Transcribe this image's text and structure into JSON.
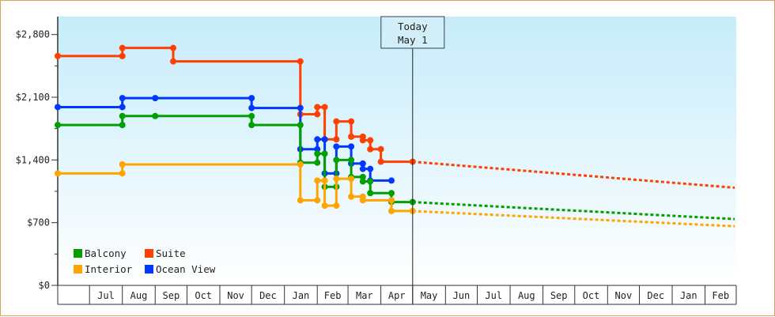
{
  "chart_data": {
    "type": "line",
    "title": "",
    "xlabel": "",
    "ylabel": "",
    "ylim": [
      0,
      3000
    ],
    "y_ticks": [
      {
        "value": 0,
        "label": "$0"
      },
      {
        "value": 700,
        "label": "$700"
      },
      {
        "value": 1400,
        "label": "$1,400"
      },
      {
        "value": 2100,
        "label": "$2,100"
      },
      {
        "value": 2800,
        "label": "$2,800"
      }
    ],
    "x_domain": [
      "2023-06-01",
      "2024-03-01"
    ],
    "x_ticks": [
      {
        "date": "2023-07-01",
        "label": "Jul"
      },
      {
        "date": "2023-08-01",
        "label": "Aug"
      },
      {
        "date": "2023-09-01",
        "label": "Sep"
      },
      {
        "date": "2023-10-01",
        "label": "Oct"
      },
      {
        "date": "2023-11-01",
        "label": "Nov"
      },
      {
        "date": "2023-12-01",
        "label": "Dec"
      },
      {
        "date": "2024-01-01",
        "label": "Jan"
      },
      {
        "date": "2024-02-01",
        "label": "Feb"
      },
      {
        "date": "2024-03-01",
        "label": "Mar"
      },
      {
        "date": "2024-04-01",
        "label": "Apr"
      },
      {
        "date": "2024-05-01",
        "label": "May"
      },
      {
        "date": "2024-06-01",
        "label": "Jun"
      },
      {
        "date": "2024-07-01",
        "label": "Jul"
      },
      {
        "date": "2024-08-01",
        "label": "Aug"
      },
      {
        "date": "2024-09-01",
        "label": "Sep"
      },
      {
        "date": "2024-10-01",
        "label": "Oct"
      },
      {
        "date": "2024-11-01",
        "label": "Nov"
      },
      {
        "date": "2024-12-01",
        "label": "Dec"
      },
      {
        "date": "2025-01-01",
        "label": "Jan"
      },
      {
        "date": "2025-02-01",
        "label": "Feb"
      }
    ],
    "today": {
      "date": "2024-05-01",
      "label_line1": "Today",
      "label_line2": "May 1"
    },
    "legend": {
      "placement": "bottom-left"
    },
    "series": [
      {
        "name": "Suite",
        "color": "#ff4000",
        "points": [
          {
            "date": "2023-06-01",
            "value": 2560
          },
          {
            "date": "2023-08-01",
            "value": 2560
          },
          {
            "date": "2023-08-01",
            "value": 2650
          },
          {
            "date": "2023-09-18",
            "value": 2650
          },
          {
            "date": "2023-09-18",
            "value": 2500
          },
          {
            "date": "2024-01-16",
            "value": 2500
          },
          {
            "date": "2024-01-16",
            "value": 1910
          },
          {
            "date": "2024-02-01",
            "value": 1910
          },
          {
            "date": "2024-02-01",
            "value": 1990
          },
          {
            "date": "2024-02-08",
            "value": 1990
          },
          {
            "date": "2024-02-08",
            "value": 1630
          },
          {
            "date": "2024-02-19",
            "value": 1630
          },
          {
            "date": "2024-02-19",
            "value": 1830
          },
          {
            "date": "2024-03-04",
            "value": 1830
          },
          {
            "date": "2024-03-04",
            "value": 1660
          },
          {
            "date": "2024-03-15",
            "value": 1660
          },
          {
            "date": "2024-03-15",
            "value": 1620
          },
          {
            "date": "2024-03-22",
            "value": 1620
          },
          {
            "date": "2024-03-22",
            "value": 1520
          },
          {
            "date": "2024-04-01",
            "value": 1520
          },
          {
            "date": "2024-04-01",
            "value": 1380
          },
          {
            "date": "2024-05-01",
            "value": 1380
          }
        ],
        "forecast": [
          {
            "date": "2024-05-01",
            "value": 1380
          },
          {
            "date": "2025-03-01",
            "value": 1090
          }
        ]
      },
      {
        "name": "Ocean View",
        "color": "#0038ff",
        "points": [
          {
            "date": "2023-06-01",
            "value": 1990
          },
          {
            "date": "2023-08-01",
            "value": 1990
          },
          {
            "date": "2023-08-01",
            "value": 2090
          },
          {
            "date": "2023-09-01",
            "value": 2090
          },
          {
            "date": "2023-12-01",
            "value": 2090
          },
          {
            "date": "2023-12-01",
            "value": 1980
          },
          {
            "date": "2024-01-16",
            "value": 1980
          },
          {
            "date": "2024-01-16",
            "value": 1520
          },
          {
            "date": "2024-02-01",
            "value": 1520
          },
          {
            "date": "2024-02-01",
            "value": 1630
          },
          {
            "date": "2024-02-08",
            "value": 1630
          },
          {
            "date": "2024-02-08",
            "value": 1250
          },
          {
            "date": "2024-02-19",
            "value": 1250
          },
          {
            "date": "2024-02-19",
            "value": 1550
          },
          {
            "date": "2024-03-04",
            "value": 1550
          },
          {
            "date": "2024-03-04",
            "value": 1360
          },
          {
            "date": "2024-03-15",
            "value": 1360
          },
          {
            "date": "2024-03-15",
            "value": 1300
          },
          {
            "date": "2024-03-22",
            "value": 1300
          },
          {
            "date": "2024-03-22",
            "value": 1170
          },
          {
            "date": "2024-04-11",
            "value": 1170
          }
        ],
        "forecast": []
      },
      {
        "name": "Balcony",
        "color": "#00a000",
        "points": [
          {
            "date": "2023-06-01",
            "value": 1790
          },
          {
            "date": "2023-08-01",
            "value": 1790
          },
          {
            "date": "2023-08-01",
            "value": 1890
          },
          {
            "date": "2023-09-01",
            "value": 1890
          },
          {
            "date": "2023-12-01",
            "value": 1890
          },
          {
            "date": "2023-12-01",
            "value": 1790
          },
          {
            "date": "2024-01-16",
            "value": 1790
          },
          {
            "date": "2024-01-16",
            "value": 1370
          },
          {
            "date": "2024-02-01",
            "value": 1370
          },
          {
            "date": "2024-02-01",
            "value": 1470
          },
          {
            "date": "2024-02-08",
            "value": 1470
          },
          {
            "date": "2024-02-08",
            "value": 1100
          },
          {
            "date": "2024-02-19",
            "value": 1100
          },
          {
            "date": "2024-02-19",
            "value": 1400
          },
          {
            "date": "2024-03-04",
            "value": 1400
          },
          {
            "date": "2024-03-04",
            "value": 1210
          },
          {
            "date": "2024-03-15",
            "value": 1210
          },
          {
            "date": "2024-03-15",
            "value": 1160
          },
          {
            "date": "2024-03-22",
            "value": 1160
          },
          {
            "date": "2024-03-22",
            "value": 1030
          },
          {
            "date": "2024-04-11",
            "value": 1030
          },
          {
            "date": "2024-04-11",
            "value": 930
          },
          {
            "date": "2024-05-01",
            "value": 930
          }
        ],
        "forecast": [
          {
            "date": "2024-05-01",
            "value": 930
          },
          {
            "date": "2025-03-01",
            "value": 740
          }
        ]
      },
      {
        "name": "Interior",
        "color": "#ffa500",
        "points": [
          {
            "date": "2023-06-01",
            "value": 1250
          },
          {
            "date": "2023-08-01",
            "value": 1250
          },
          {
            "date": "2023-08-01",
            "value": 1350
          },
          {
            "date": "2024-01-16",
            "value": 1350
          },
          {
            "date": "2024-01-16",
            "value": 950
          },
          {
            "date": "2024-02-01",
            "value": 950
          },
          {
            "date": "2024-02-01",
            "value": 1170
          },
          {
            "date": "2024-02-08",
            "value": 1170
          },
          {
            "date": "2024-02-08",
            "value": 890
          },
          {
            "date": "2024-02-19",
            "value": 890
          },
          {
            "date": "2024-02-19",
            "value": 1190
          },
          {
            "date": "2024-03-04",
            "value": 1190
          },
          {
            "date": "2024-03-04",
            "value": 990
          },
          {
            "date": "2024-03-15",
            "value": 990
          },
          {
            "date": "2024-03-15",
            "value": 950
          },
          {
            "date": "2024-04-11",
            "value": 950
          },
          {
            "date": "2024-04-11",
            "value": 830
          },
          {
            "date": "2024-05-01",
            "value": 830
          }
        ],
        "forecast": [
          {
            "date": "2024-05-01",
            "value": 830
          },
          {
            "date": "2025-03-01",
            "value": 660
          }
        ]
      }
    ],
    "legend_entries": [
      {
        "name": "Balcony",
        "color": "#00a000"
      },
      {
        "name": "Suite",
        "color": "#ff4000"
      },
      {
        "name": "Interior",
        "color": "#ffa500"
      },
      {
        "name": "Ocean View",
        "color": "#0038ff"
      }
    ],
    "colors": {
      "plot_bg_top": "#c6ecfa",
      "plot_bg_bottom": "#ffffff",
      "frame_border": "#e0a060",
      "axis": "#333333"
    }
  }
}
